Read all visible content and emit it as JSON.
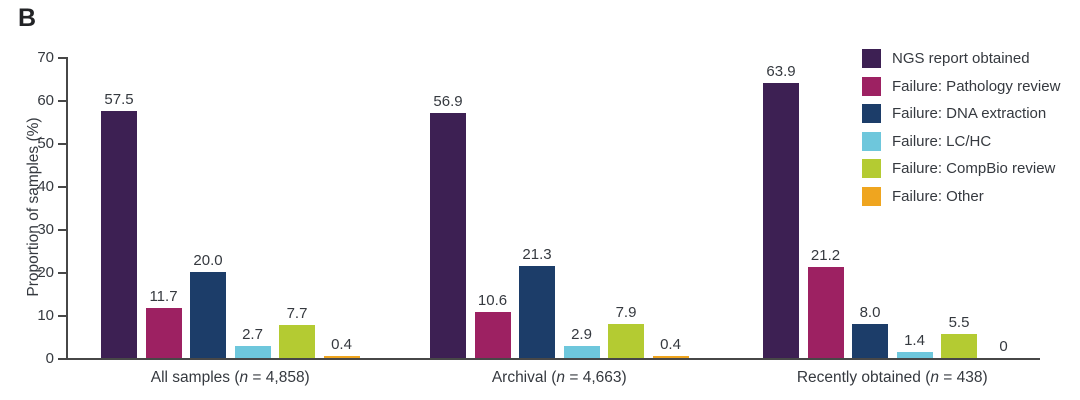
{
  "panel_label": "B",
  "chart_data": {
    "type": "bar",
    "title": "",
    "xlabel": "",
    "ylabel": "Proportion of samples (%)",
    "ylim": [
      0,
      70
    ],
    "yticks": [
      0,
      10,
      20,
      30,
      40,
      50,
      60,
      70
    ],
    "grid": false,
    "legend_position": "top-right",
    "categories": [
      "All samples (n = 4,858)",
      "Archival (n = 4,663)",
      "Recently obtained (n = 438)"
    ],
    "category_parts": [
      {
        "prefix": "All samples (",
        "n_symbol": "n",
        "suffix": " = 4,858)"
      },
      {
        "prefix": "Archival (",
        "n_symbol": "n",
        "suffix": " = 4,663)"
      },
      {
        "prefix": "Recently obtained (",
        "n_symbol": "n",
        "suffix": " = 438)"
      }
    ],
    "series": [
      {
        "name": "NGS report obtained",
        "color": "#3d2053",
        "values": [
          57.5,
          56.9,
          63.9
        ],
        "labels": [
          "57.5",
          "56.9",
          "63.9"
        ]
      },
      {
        "name": "Failure: Pathology review",
        "color": "#9d2162",
        "values": [
          11.7,
          10.6,
          21.2
        ],
        "labels": [
          "11.7",
          "10.6",
          "21.2"
        ]
      },
      {
        "name": "Failure: DNA extraction",
        "color": "#1c3d69",
        "values": [
          20.0,
          21.3,
          8.0
        ],
        "labels": [
          "20.0",
          "21.3",
          "8.0"
        ]
      },
      {
        "name": "Failure: LC/HC",
        "color": "#6ec7dc",
        "values": [
          2.7,
          2.9,
          1.4
        ],
        "labels": [
          "2.7",
          "2.9",
          "1.4"
        ]
      },
      {
        "name": "Failure: CompBio review",
        "color": "#b4cb32",
        "values": [
          7.7,
          7.9,
          5.5
        ],
        "labels": [
          "7.7",
          "7.9",
          "5.5"
        ]
      },
      {
        "name": "Failure: Other",
        "color": "#efa51f",
        "values": [
          0.4,
          0.4,
          0
        ],
        "labels": [
          "0.4",
          "0.4",
          "0"
        ]
      }
    ],
    "axis_color": "#474747"
  }
}
